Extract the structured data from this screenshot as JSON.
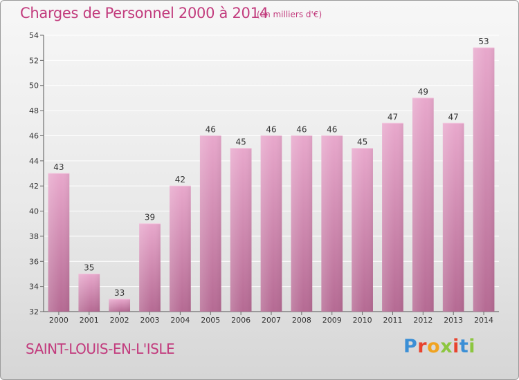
{
  "header": {
    "title": "Charges de Personnel 2000 à 2014",
    "subtitle": "(en milliers d'€)"
  },
  "footer": {
    "commune": "SAINT-LOUIS-EN-L'ISLE",
    "brand": "Proxiti"
  },
  "colors": {
    "title": "#c23b7d",
    "bar_top": "#e8a8cc",
    "bar_bottom": "#b56a93",
    "grid": "#ffffff",
    "brand_letters": [
      "#3b8fd6",
      "#e8432e",
      "#f0a321",
      "#8cc63f",
      "#e8432e",
      "#3b8fd6",
      "#8cc63f"
    ]
  },
  "chart_data": {
    "type": "bar",
    "title": "Charges de Personnel 2000 à 2014",
    "subtitle": "(en milliers d'€)",
    "categories": [
      "2000",
      "2001",
      "2002",
      "2003",
      "2004",
      "2005",
      "2006",
      "2007",
      "2008",
      "2009",
      "2010",
      "2011",
      "2012",
      "2013",
      "2014"
    ],
    "values": [
      43,
      35,
      33,
      39,
      42,
      46,
      45,
      46,
      46,
      46,
      45,
      47,
      49,
      47,
      53
    ],
    "ylim": [
      32,
      54
    ],
    "yticks": [
      32,
      34,
      36,
      38,
      40,
      42,
      44,
      46,
      48,
      50,
      52,
      54
    ],
    "grid": true,
    "data_labels": true
  }
}
